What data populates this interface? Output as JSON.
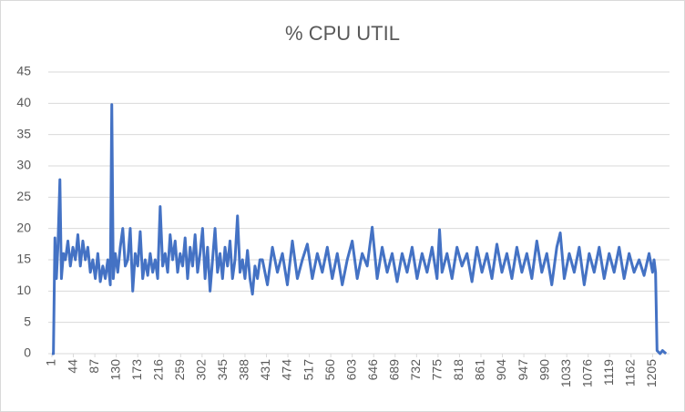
{
  "chart_data": {
    "type": "line",
    "title": "% CPU UTIL",
    "x": [
      1,
      4,
      7,
      10,
      13,
      17,
      20,
      24,
      28,
      33,
      38,
      43,
      48,
      53,
      58,
      63,
      68,
      73,
      78,
      83,
      88,
      93,
      98,
      103,
      108,
      113,
      118,
      121,
      124,
      128,
      133,
      138,
      143,
      148,
      153,
      158,
      163,
      168,
      173,
      178,
      183,
      188,
      193,
      198,
      203,
      208,
      213,
      218,
      223,
      228,
      233,
      238,
      243,
      248,
      253,
      258,
      263,
      268,
      273,
      278,
      283,
      288,
      293,
      298,
      303,
      308,
      313,
      318,
      323,
      328,
      333,
      338,
      343,
      348,
      353,
      358,
      363,
      368,
      373,
      378,
      383,
      388,
      393,
      398,
      403,
      408,
      413,
      418,
      423,
      433,
      443,
      453,
      463,
      473,
      483,
      493,
      503,
      513,
      523,
      533,
      543,
      553,
      563,
      573,
      583,
      593,
      603,
      613,
      623,
      633,
      643,
      653,
      663,
      673,
      683,
      693,
      703,
      713,
      723,
      733,
      743,
      753,
      763,
      773,
      778,
      783,
      793,
      803,
      813,
      823,
      833,
      843,
      853,
      863,
      873,
      883,
      893,
      903,
      913,
      923,
      933,
      943,
      953,
      963,
      973,
      983,
      993,
      1003,
      1013,
      1020,
      1028,
      1038,
      1048,
      1058,
      1068,
      1078,
      1088,
      1098,
      1108,
      1118,
      1128,
      1138,
      1148,
      1158,
      1168,
      1178,
      1188,
      1198,
      1205,
      1208,
      1211,
      1214,
      1220,
      1225,
      1232
    ],
    "series": [
      {
        "name": "% CPU UTIL",
        "color": "#4472c4",
        "values": [
          0,
          0,
          18.5,
          12,
          17,
          27.8,
          12,
          16,
          15,
          18,
          14,
          17,
          15,
          19,
          14,
          18,
          15,
          17,
          13,
          15,
          12,
          16,
          11.5,
          14,
          12,
          15,
          11,
          39.8,
          12,
          16,
          13,
          17,
          20,
          14,
          15,
          20,
          10,
          16,
          14,
          19.5,
          12,
          15,
          12.5,
          16,
          13,
          15,
          12,
          23.5,
          14,
          16,
          13,
          19,
          15,
          18,
          13,
          16,
          14,
          18.5,
          12,
          17,
          14,
          19,
          13,
          16,
          20,
          12,
          17,
          10,
          15,
          20,
          13,
          16,
          12,
          17,
          14,
          18,
          12,
          15,
          22,
          13,
          15,
          12,
          16.5,
          12,
          9.5,
          14,
          12,
          15,
          15,
          11,
          17,
          13,
          16,
          11,
          18,
          12,
          15,
          17.5,
          12,
          16,
          13,
          17,
          12,
          16,
          11,
          15,
          18,
          12,
          16,
          14,
          20.2,
          12,
          17,
          13,
          16,
          11.5,
          16,
          13,
          17,
          12,
          16,
          13,
          17,
          12,
          19.8,
          13,
          16,
          12,
          17,
          14,
          16,
          11.5,
          17,
          13,
          16,
          12,
          17.5,
          13,
          16,
          12,
          17,
          13,
          16,
          12,
          18,
          13,
          16,
          11,
          17,
          19.3,
          12,
          16,
          13,
          17,
          11,
          16,
          13,
          17,
          12,
          16,
          13,
          17,
          12,
          16,
          13,
          15,
          12.5,
          16,
          13,
          15,
          13,
          0.5,
          0,
          0.5,
          0
        ]
      }
    ],
    "xlim": [
      1,
      1239
    ],
    "ylim": [
      0,
      45
    ],
    "xticks": [
      1,
      44,
      87,
      130,
      173,
      216,
      259,
      302,
      345,
      388,
      431,
      474,
      517,
      560,
      603,
      646,
      689,
      732,
      775,
      818,
      861,
      904,
      947,
      990,
      1033,
      1076,
      1119,
      1162,
      1205
    ],
    "yticks": [
      0,
      5,
      10,
      15,
      20,
      25,
      30,
      35,
      40,
      45
    ],
    "grid": true
  }
}
